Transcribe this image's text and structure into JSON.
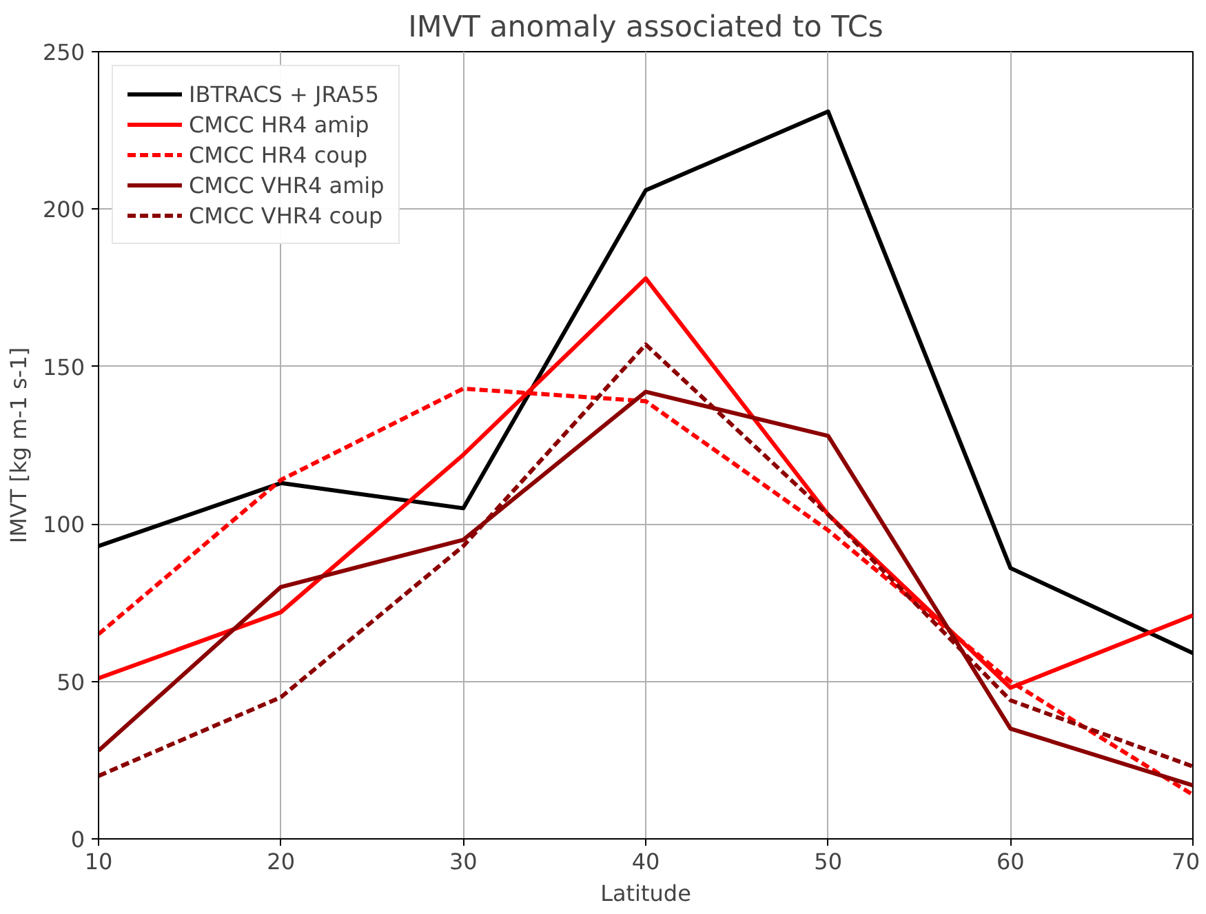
{
  "chart_data": {
    "type": "line",
    "title": "IMVT anomaly associated to TCs",
    "xlabel": "Latitude",
    "ylabel": "IMVT [kg m-1 s-1]",
    "x": [
      10,
      20,
      30,
      40,
      50,
      60,
      70
    ],
    "series": [
      {
        "name": "IBTRACS + JRA55",
        "color": "#000000",
        "line_style": "solid",
        "values": [
          93,
          113,
          105,
          206,
          231,
          86,
          59
        ]
      },
      {
        "name": "CMCC HR4 amip",
        "color": "#ff0000",
        "line_style": "solid",
        "values": [
          51,
          72,
          122,
          178,
          103,
          48,
          71
        ]
      },
      {
        "name": "CMCC HR4 coup",
        "color": "#ff0000",
        "line_style": "dashed",
        "values": [
          65,
          114,
          143,
          139,
          98,
          50,
          14
        ]
      },
      {
        "name": "CMCC VHR4 amip",
        "color": "#8b0000",
        "line_style": "solid",
        "values": [
          28,
          80,
          95,
          142,
          128,
          35,
          17
        ]
      },
      {
        "name": "CMCC VHR4 coup",
        "color": "#8b0000",
        "line_style": "dashed",
        "values": [
          20,
          45,
          93,
          157,
          103,
          44,
          23
        ]
      }
    ],
    "xlim": [
      10,
      70
    ],
    "ylim": [
      0,
      250
    ],
    "xticks": [
      10,
      20,
      30,
      40,
      50,
      60,
      70
    ],
    "yticks": [
      0,
      50,
      100,
      150,
      200,
      250
    ],
    "grid": true,
    "legend": "top left",
    "marker": "none"
  }
}
